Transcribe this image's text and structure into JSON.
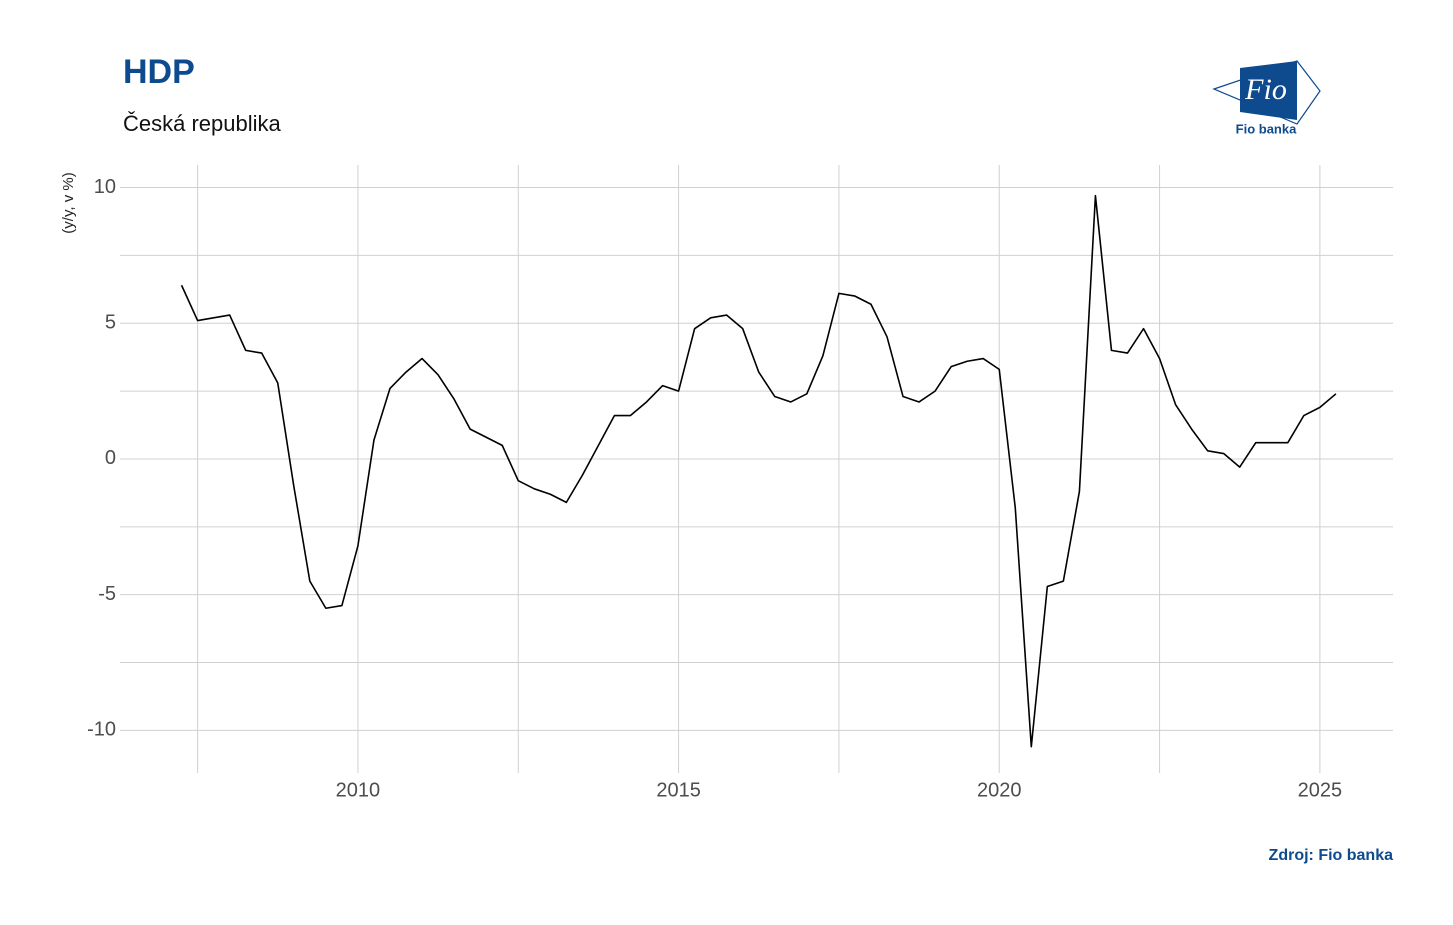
{
  "chart_data": {
    "type": "line",
    "title": "HDP",
    "subtitle": "Česká republika",
    "y_label": "(y/y, v %)",
    "source": "Zdroj: Fio banka",
    "x": [
      2007.25,
      2007.5,
      2007.75,
      2008,
      2008.25,
      2008.5,
      2008.75,
      2009,
      2009.25,
      2009.5,
      2009.75,
      2010,
      2010.25,
      2010.5,
      2010.75,
      2011,
      2011.25,
      2011.5,
      2011.75,
      2012,
      2012.25,
      2012.5,
      2012.75,
      2013,
      2013.25,
      2013.5,
      2013.75,
      2014,
      2014.25,
      2014.5,
      2014.75,
      2015,
      2015.25,
      2015.5,
      2015.75,
      2016,
      2016.25,
      2016.5,
      2016.75,
      2017,
      2017.25,
      2017.5,
      2017.75,
      2018,
      2018.25,
      2018.5,
      2018.75,
      2019,
      2019.25,
      2019.5,
      2019.75,
      2020,
      2020.25,
      2020.5,
      2020.75,
      2021,
      2021.25,
      2021.5,
      2021.75,
      2022,
      2022.25,
      2022.5,
      2022.75,
      2023,
      2023.25,
      2023.5,
      2023.75,
      2024,
      2024.25,
      2024.5,
      2024.75,
      2025,
      2025.25
    ],
    "series": [
      {
        "color": "#000000",
        "values": [
          6.4,
          5.1,
          5.2,
          5.3,
          4.0,
          3.9,
          2.8,
          -1.0,
          -4.5,
          -5.5,
          -5.4,
          -3.2,
          0.7,
          2.6,
          3.2,
          3.7,
          3.1,
          2.2,
          1.1,
          0.8,
          0.5,
          -0.8,
          -1.1,
          -1.3,
          -1.6,
          -0.6,
          0.5,
          1.6,
          1.6,
          2.1,
          2.7,
          2.5,
          4.8,
          5.2,
          5.3,
          4.8,
          3.2,
          2.3,
          2.1,
          2.4,
          3.8,
          6.1,
          6.0,
          5.7,
          4.5,
          2.3,
          2.1,
          2.5,
          3.4,
          3.6,
          3.7,
          3.3,
          -1.8,
          -10.6,
          -4.7,
          -4.5,
          -1.2,
          9.7,
          4.0,
          3.9,
          4.8,
          3.7,
          2.0,
          1.1,
          0.3,
          0.2,
          -0.3,
          0.6,
          0.6,
          0.6,
          1.6,
          1.9,
          2.4
        ]
      }
    ],
    "xlim": [
      2006.29,
      2026.14
    ],
    "ylim": [
      -11.57,
      10.83
    ],
    "xticks": [
      2010,
      2015,
      2020,
      2025
    ],
    "yticks": [
      10,
      5,
      0,
      -5,
      -10
    ],
    "xminor": [
      2007.5,
      2012.5,
      2017.5,
      2022.5
    ],
    "yminor": [
      7.5,
      2.5,
      -2.5,
      -7.5
    ],
    "grid": true
  },
  "logo": {
    "mark": "Fio",
    "text": "Fio banka"
  }
}
